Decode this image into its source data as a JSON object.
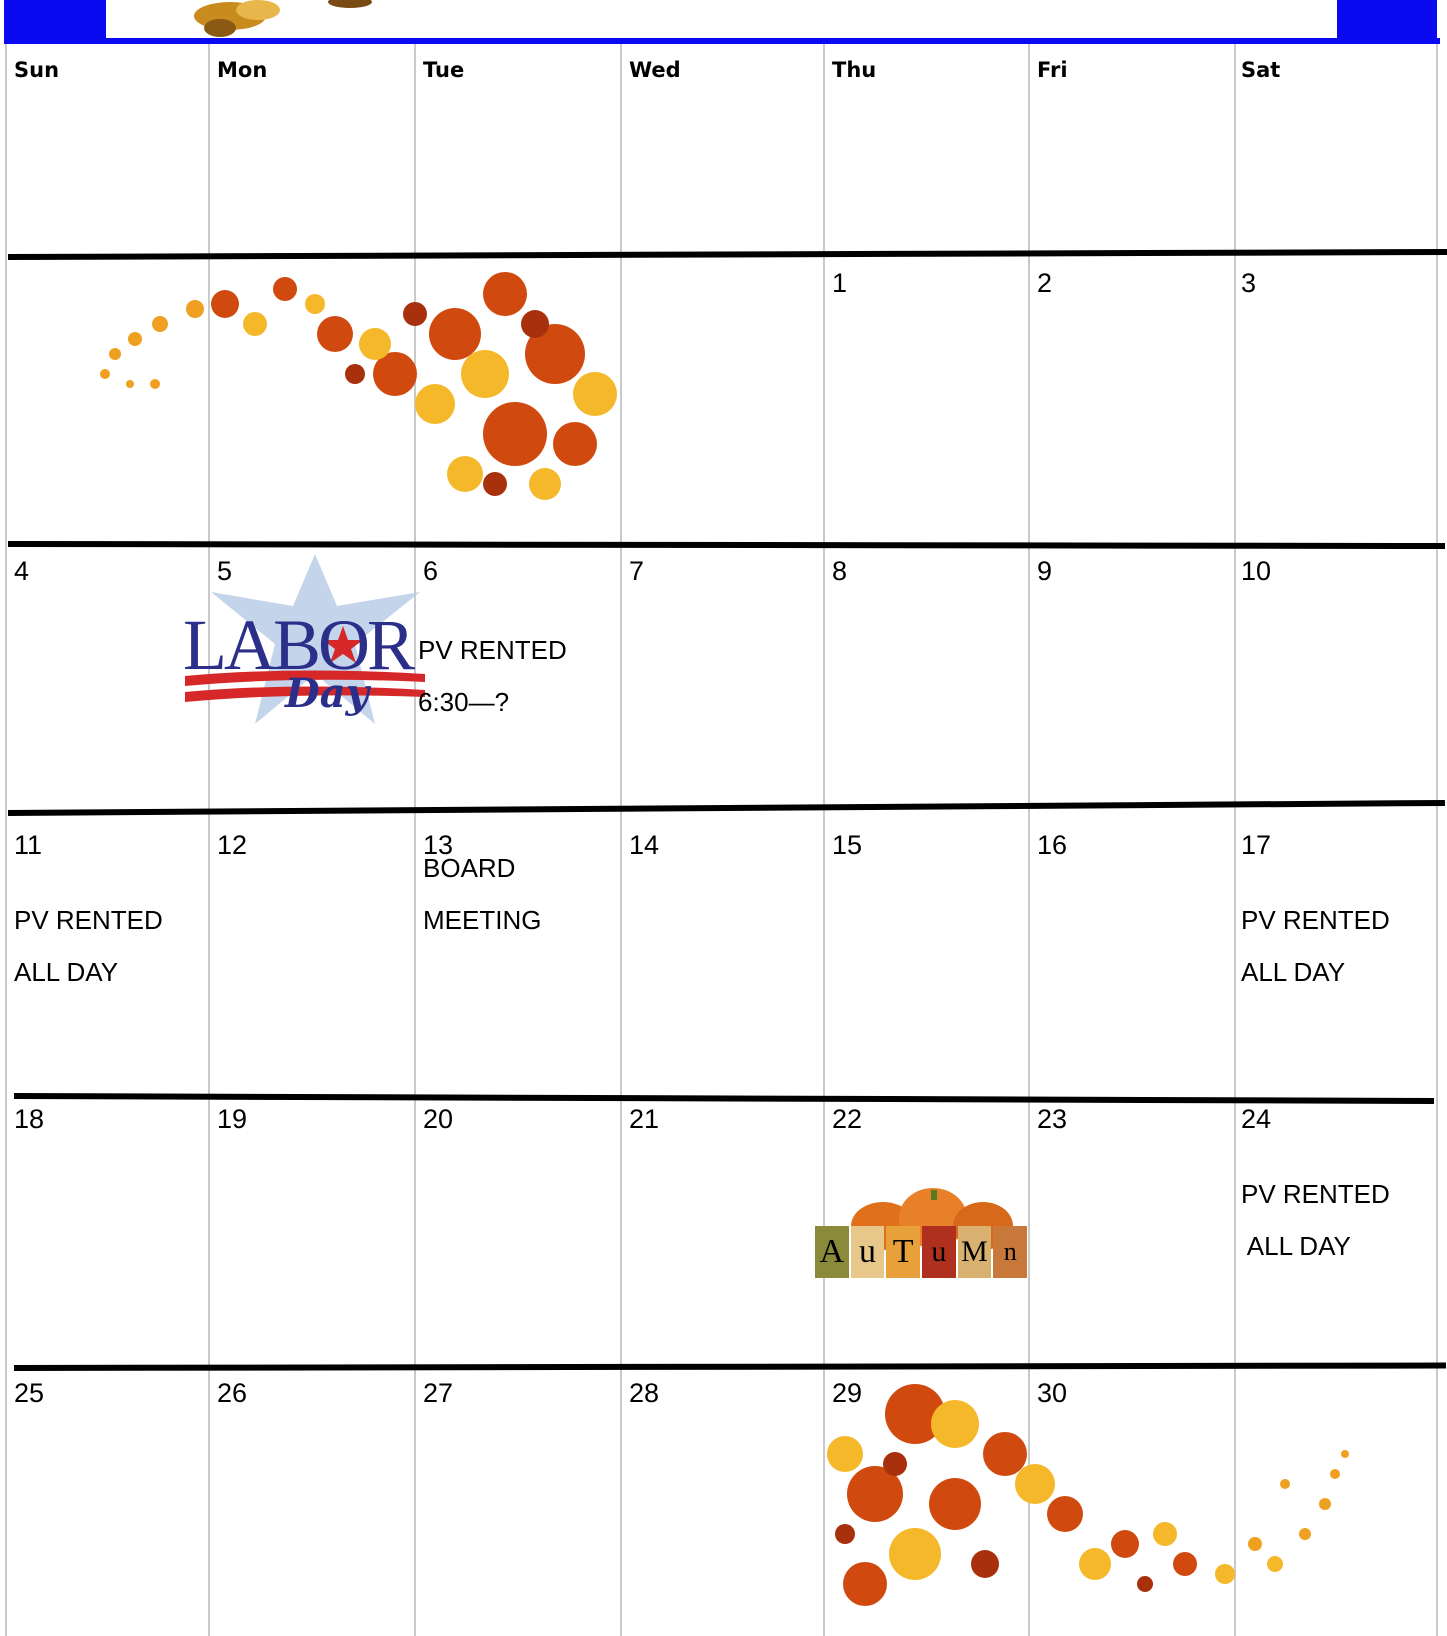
{
  "weekdays": [
    "Sun",
    "Mon",
    "Tue",
    "Wed",
    "Thu",
    "Fri",
    "Sat"
  ],
  "weeks": [
    [
      "",
      "",
      "",
      "",
      "1",
      "2",
      "3"
    ],
    [
      "4",
      "5",
      "6",
      "7",
      "8",
      "9",
      "10"
    ],
    [
      "11",
      "12",
      "13",
      "14",
      "15",
      "16",
      "17"
    ],
    [
      "18",
      "19",
      "20",
      "21",
      "22",
      "23",
      "24"
    ],
    [
      "25",
      "26",
      "27",
      "28",
      "29",
      "30",
      ""
    ]
  ],
  "events": {
    "tue_6": [
      "PV RENTED",
      "6:30—?"
    ],
    "sun_11": [
      "PV RENTED",
      "ALL DAY"
    ],
    "tue_13": [
      "BOARD",
      "MEETING"
    ],
    "sat_17": [
      "PV RENTED",
      "ALL DAY"
    ],
    "sat_24": [
      "PV RENTED",
      " ALL DAY"
    ]
  },
  "decorations": {
    "labor_day": {
      "word1": "LABOR",
      "word2": "Day"
    },
    "autumn_sign": {
      "letters": [
        "A",
        "u",
        "T",
        "u",
        "M",
        "n"
      ]
    }
  },
  "colors": {
    "accent_blue": "#0a0af0",
    "grid_line": "#c9c9c9",
    "week_rule": "#000000"
  }
}
